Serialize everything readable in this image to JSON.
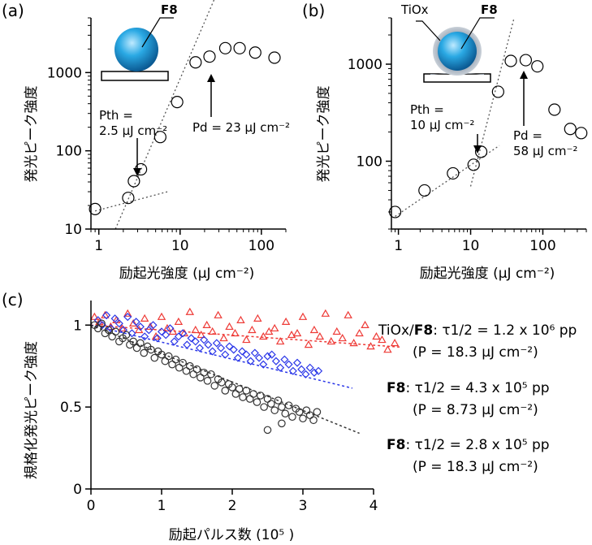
{
  "chart_data": [
    {
      "id": "a",
      "type": "scatter",
      "panel_label": "(a)",
      "xlabel": "励起光強度 (μJ cm⁻²)",
      "ylabel": "発光ピーク強度",
      "xscale": "log",
      "yscale": "log",
      "xlim": [
        0.8,
        200
      ],
      "ylim": [
        10,
        5000
      ],
      "x_ticks": [
        1,
        10,
        100
      ],
      "x_tick_labels": [
        "1",
        "10",
        "100"
      ],
      "y_ticks": [
        10,
        100,
        1000
      ],
      "y_tick_labels": [
        "10",
        "100",
        "1000"
      ],
      "grid": false,
      "series": [
        {
          "marker": "open-circle",
          "color": "#000000",
          "x": [
            0.9,
            2.3,
            2.7,
            3.3,
            5.7,
            9.2,
            15.5,
            23,
            36,
            54,
            84,
            145
          ],
          "y": [
            18,
            25,
            41,
            58,
            150,
            420,
            1350,
            1600,
            2050,
            2050,
            1800,
            1550
          ]
        }
      ],
      "fit_lines": [
        {
          "style": "dotted",
          "x": [
            0.9,
            7
          ],
          "y": [
            17,
            30
          ]
        },
        {
          "style": "dotted",
          "x": [
            1.6,
            28
          ],
          "y": [
            10,
            10000
          ]
        }
      ],
      "annotations": [
        {
          "label": "F8",
          "kind": "inset-schematic"
        },
        {
          "line1": "Pth =",
          "line2": "2.5 μJ cm⁻²",
          "arrow_to": [
            2.7,
            41
          ]
        },
        {
          "text": "Pd = 23 μJ cm⁻²",
          "arrow_to": [
            23,
            1600
          ]
        }
      ]
    },
    {
      "id": "b",
      "type": "scatter",
      "panel_label": "(b)",
      "xlabel": "励起光強度 (μJ cm⁻²)",
      "ylabel": "発光ピーク強度",
      "xscale": "log",
      "yscale": "log",
      "xlim": [
        0.8,
        400
      ],
      "ylim": [
        20,
        3000
      ],
      "x_ticks": [
        1,
        10,
        100
      ],
      "x_tick_labels": [
        "1",
        "10",
        "100"
      ],
      "y_ticks": [
        100,
        1000
      ],
      "y_tick_labels": [
        "100",
        "1000"
      ],
      "grid": false,
      "series": [
        {
          "marker": "open-circle",
          "color": "#000000",
          "x": [
            0.9,
            2.3,
            5.7,
            11,
            14,
            24,
            36,
            58,
            84,
            145,
            240,
            340
          ],
          "y": [
            30,
            50,
            75,
            92,
            125,
            520,
            1080,
            1100,
            950,
            340,
            215,
            195
          ]
        }
      ],
      "fit_lines": [
        {
          "style": "dotted",
          "x": [
            0.9,
            25
          ],
          "y": [
            27,
            145
          ]
        },
        {
          "style": "dotted",
          "x": [
            10,
            40
          ],
          "y": [
            55,
            3000
          ]
        }
      ],
      "annotations": [
        {
          "label": "F8",
          "kind": "inset-schematic"
        },
        {
          "label": "TiOx",
          "kind": "inset-schematic"
        },
        {
          "line1": "Pth =",
          "line2": "10 μJ cm⁻²",
          "arrow_to": [
            11,
            92
          ]
        },
        {
          "line1": "Pd =",
          "line2": "58 μJ cm⁻²",
          "arrow_to": [
            58,
            1100
          ]
        }
      ]
    },
    {
      "id": "c",
      "type": "scatter",
      "panel_label": "(c)",
      "xlabel": "励起パルス数 (10⁵ )",
      "ylabel": "規格化発光ピーク強度",
      "xlim": [
        0,
        4
      ],
      "ylim": [
        0,
        1.15
      ],
      "x_ticks": [
        0,
        1,
        2,
        3,
        4
      ],
      "x_tick_labels": [
        "0",
        "1",
        "2",
        "3",
        "4"
      ],
      "y_ticks": [
        0,
        0.5,
        1
      ],
      "y_tick_labels": [
        "0",
        "0.5",
        "1"
      ],
      "grid": false,
      "series": [
        {
          "legend_id": 0,
          "marker": "open-triangle",
          "color": "#ee3a36",
          "equation": "τ1/2 = 1.2 x 10⁶ pp",
          "condition": "(P = 18.3 μJ cm⁻²)",
          "fit": {
            "x": [
              0,
              4.4
            ],
            "y": [
              1.0,
              0.865
            ]
          },
          "x": [
            0.05,
            0.12,
            0.2,
            0.28,
            0.36,
            0.44,
            0.52,
            0.6,
            0.68,
            0.76,
            0.84,
            0.92,
            1.0,
            1.08,
            1.16,
            1.24,
            1.32,
            1.4,
            1.48,
            1.56,
            1.64,
            1.72,
            1.8,
            1.88,
            1.96,
            2.04,
            2.12,
            2.2,
            2.28,
            2.36,
            2.44,
            2.52,
            2.6,
            2.68,
            2.76,
            2.84,
            2.92,
            3.0,
            3.08,
            3.16,
            3.24,
            3.32,
            3.4,
            3.48,
            3.56,
            3.64,
            3.72,
            3.8,
            3.88,
            3.96,
            4.04,
            4.12,
            4.2,
            4.3
          ],
          "y": [
            1.05,
            1.02,
            1.06,
            0.99,
            1.03,
            0.98,
            1.07,
            1.01,
            0.97,
            1.04,
            0.99,
            0.93,
            1.05,
            0.98,
            0.96,
            1.02,
            0.95,
            1.08,
            0.97,
            0.94,
            1.0,
            0.96,
            1.06,
            0.92,
            0.99,
            0.95,
            1.03,
            0.91,
            0.97,
            1.04,
            0.93,
            0.96,
            0.98,
            0.9,
            1.02,
            0.94,
            0.95,
            1.05,
            0.88,
            0.97,
            0.93,
            1.07,
            0.9,
            0.96,
            0.92,
            1.06,
            0.89,
            0.95,
            1.0,
            0.87,
            0.93,
            0.91,
            0.85,
            0.89
          ]
        },
        {
          "legend_id": 1,
          "marker": "open-diamond",
          "color": "#2a36e8",
          "equation": "τ1/2 = 4.3 x 10⁵ pp",
          "condition": "(P = 8.73 μJ cm⁻²)",
          "fit": {
            "x": [
              0,
              3.7
            ],
            "y": [
              1.0,
              0.615
            ]
          },
          "x": [
            0.1,
            0.16,
            0.22,
            0.28,
            0.34,
            0.4,
            0.46,
            0.52,
            0.58,
            0.64,
            0.7,
            0.76,
            0.82,
            0.88,
            0.94,
            1.0,
            1.06,
            1.12,
            1.18,
            1.24,
            1.3,
            1.36,
            1.42,
            1.48,
            1.54,
            1.6,
            1.66,
            1.72,
            1.78,
            1.84,
            1.9,
            1.96,
            2.02,
            2.08,
            2.14,
            2.2,
            2.26,
            2.32,
            2.38,
            2.44,
            2.5,
            2.56,
            2.62,
            2.68,
            2.74,
            2.8,
            2.86,
            2.92,
            2.98,
            3.04,
            3.1,
            3.16,
            3.22
          ],
          "y": [
            1.03,
            1.0,
            1.06,
            0.98,
            1.04,
            1.01,
            0.97,
            1.05,
            0.95,
            1.02,
            0.99,
            0.93,
            0.97,
            1.0,
            0.92,
            0.96,
            0.94,
            0.98,
            0.9,
            0.93,
            0.95,
            0.88,
            0.92,
            0.9,
            0.86,
            0.91,
            0.88,
            0.84,
            0.89,
            0.86,
            0.82,
            0.87,
            0.85,
            0.8,
            0.84,
            0.82,
            0.78,
            0.83,
            0.8,
            0.76,
            0.81,
            0.82,
            0.78,
            0.74,
            0.79,
            0.76,
            0.72,
            0.77,
            0.73,
            0.7,
            0.74,
            0.71,
            0.72
          ]
        },
        {
          "legend_id": 2,
          "marker": "open-circle",
          "color": "#333333",
          "equation": "τ1/2 = 2.8 x 10⁵ pp",
          "condition": "(P = 18.3 μJ cm⁻²)",
          "fit": {
            "x": [
              0,
              3.8
            ],
            "y": [
              1.0,
              0.34
            ]
          },
          "x": [
            0.05,
            0.1,
            0.15,
            0.2,
            0.25,
            0.3,
            0.35,
            0.4,
            0.45,
            0.5,
            0.55,
            0.6,
            0.65,
            0.7,
            0.75,
            0.8,
            0.85,
            0.9,
            0.95,
            1.0,
            1.05,
            1.1,
            1.15,
            1.2,
            1.25,
            1.3,
            1.35,
            1.4,
            1.45,
            1.5,
            1.55,
            1.6,
            1.65,
            1.7,
            1.75,
            1.8,
            1.85,
            1.9,
            1.95,
            2.0,
            2.05,
            2.1,
            2.15,
            2.2,
            2.25,
            2.3,
            2.35,
            2.4,
            2.45,
            2.5,
            2.55,
            2.6,
            2.65,
            2.7,
            2.75,
            2.8,
            2.85,
            2.9,
            2.95,
            3.0,
            3.05,
            3.1,
            3.15,
            3.2,
            2.5,
            2.7
          ],
          "y": [
            1.0,
            0.98,
            1.01,
            0.95,
            0.97,
            0.93,
            0.96,
            0.9,
            0.92,
            0.94,
            0.88,
            0.9,
            0.86,
            0.89,
            0.83,
            0.87,
            0.85,
            0.8,
            0.84,
            0.82,
            0.78,
            0.81,
            0.76,
            0.79,
            0.74,
            0.77,
            0.72,
            0.75,
            0.7,
            0.73,
            0.68,
            0.71,
            0.66,
            0.7,
            0.63,
            0.67,
            0.65,
            0.6,
            0.64,
            0.62,
            0.58,
            0.61,
            0.56,
            0.6,
            0.55,
            0.58,
            0.53,
            0.57,
            0.5,
            0.55,
            0.52,
            0.48,
            0.54,
            0.5,
            0.46,
            0.51,
            0.44,
            0.49,
            0.47,
            0.43,
            0.48,
            0.45,
            0.42,
            0.47,
            0.36,
            0.4
          ]
        }
      ],
      "legend": [
        {
          "prefix": "TiOx/",
          "bold": "F8",
          "sep": ": "
        },
        {
          "prefix": "",
          "bold": "F8",
          "sep": ": "
        },
        {
          "prefix": "",
          "bold": "F8",
          "sep": ": "
        }
      ]
    }
  ]
}
